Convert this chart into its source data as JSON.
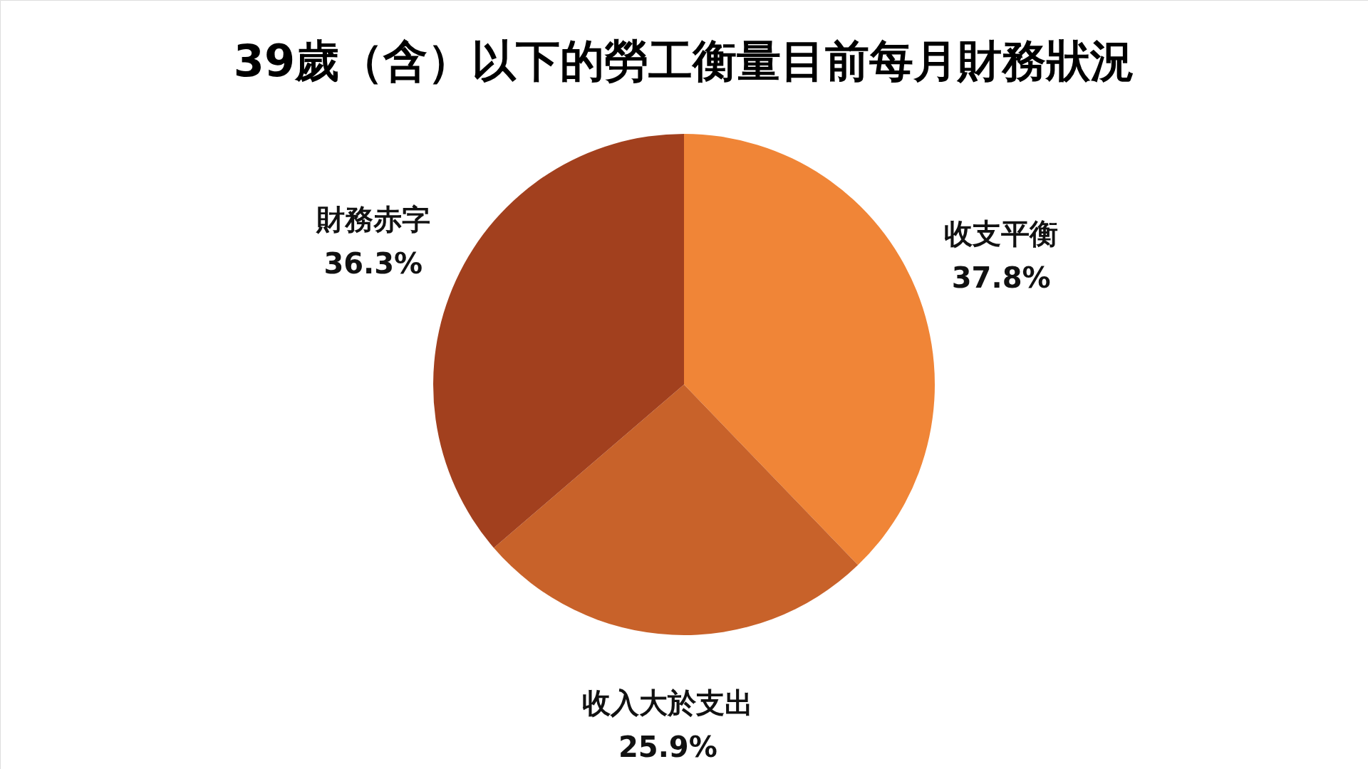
{
  "chart_data": {
    "type": "pie",
    "title": "39歲（含）以下的勞工衡量目前每月財務狀況",
    "categories": [
      "收支平衡",
      "收入大於支出",
      "財務赤字"
    ],
    "values": [
      37.8,
      25.9,
      36.3
    ],
    "value_labels": [
      "37.8%",
      "25.9%",
      "36.3%"
    ],
    "colors": [
      "#f08537",
      "#c8622a",
      "#a2401e"
    ]
  }
}
